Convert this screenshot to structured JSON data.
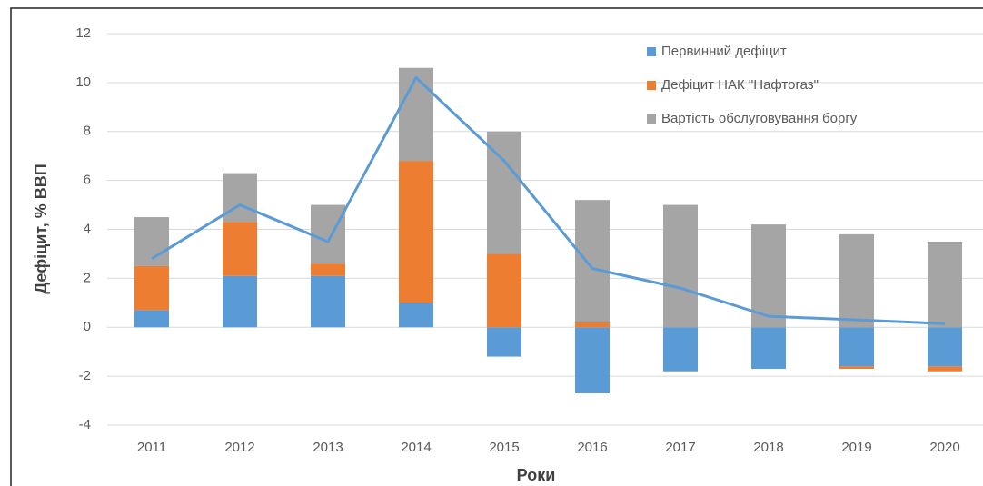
{
  "chart_data": {
    "type": "stacked_bar_line",
    "x_label": "Роки",
    "y_label": "Дефіцит, % ВВП",
    "categories": [
      "2011",
      "2012",
      "2013",
      "2014",
      "2015",
      "2016",
      "2017",
      "2018",
      "2019",
      "2020"
    ],
    "series": [
      {
        "name": "Первинний дефіцит",
        "color": "#5b9bd5",
        "values": [
          0.7,
          2.1,
          2.1,
          1.0,
          -1.2,
          -2.7,
          -1.8,
          -1.7,
          -1.6,
          -1.6
        ]
      },
      {
        "name": "Дефіцит НАК \"Нафтогаз\"",
        "color": "#ed7d31",
        "values": [
          1.8,
          2.2,
          0.5,
          5.8,
          3.0,
          0.2,
          0,
          0,
          -0.1,
          -0.2
        ]
      },
      {
        "name": "Вартість обслуговування боргу",
        "color": "#a5a5a5",
        "values": [
          2.0,
          2.0,
          2.4,
          3.8,
          5.0,
          5.0,
          5.0,
          4.2,
          3.8,
          3.5
        ]
      }
    ],
    "line": {
      "color": "#5b9bd5",
      "values": [
        2.8,
        5.0,
        3.5,
        10.2,
        6.8,
        2.4,
        1.6,
        0.45,
        0.3,
        0.15
      ]
    },
    "ylim": [
      -4,
      12
    ],
    "yticks": [
      -4,
      -2,
      0,
      2,
      4,
      6,
      8,
      10,
      12
    ],
    "grid": true,
    "legend": "top-right"
  }
}
